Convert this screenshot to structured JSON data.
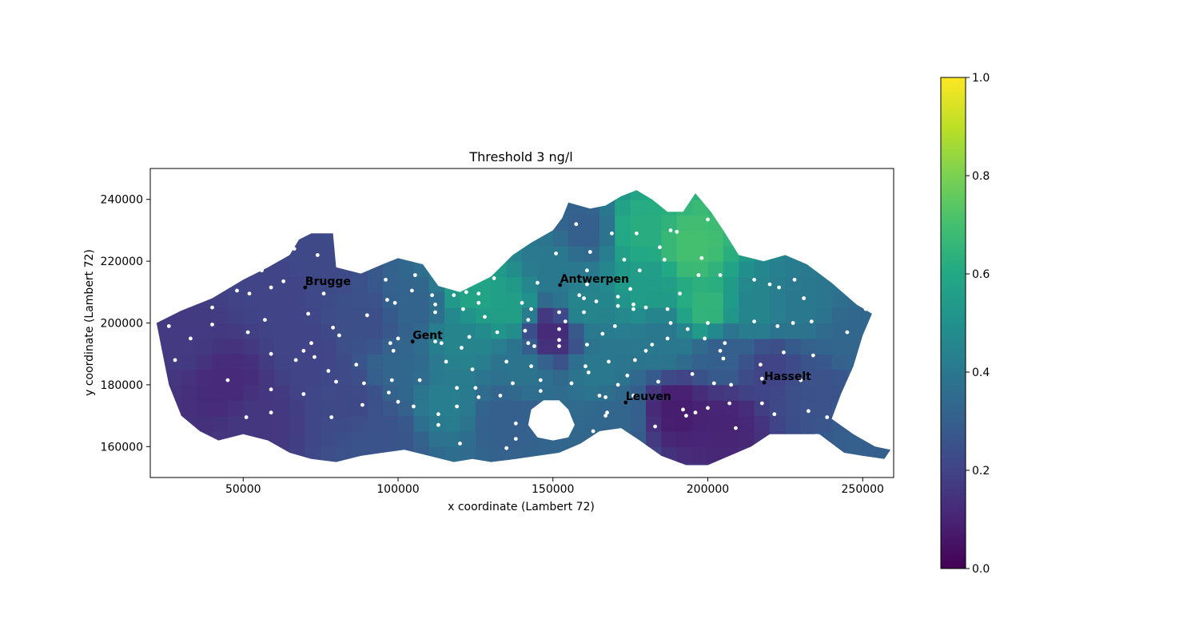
{
  "chart_data": {
    "type": "heatmap",
    "title": "Threshold 3 ng/l",
    "xlabel": "x coordinate (Lambert 72)",
    "ylabel": "y coordinate (Lambert 72)",
    "xlim": [
      20000,
      260000
    ],
    "ylim": [
      150000,
      250000
    ],
    "x_ticks": [
      50000,
      100000,
      150000,
      200000,
      250000
    ],
    "x_tick_labels": [
      "50000",
      "100000",
      "150000",
      "200000",
      "250000"
    ],
    "y_ticks": [
      160000,
      180000,
      200000,
      220000,
      240000
    ],
    "y_tick_labels": [
      "160000",
      "180000",
      "200000",
      "220000",
      "240000"
    ],
    "grid": false,
    "colormap": "viridis",
    "colorbar": {
      "min": 0.0,
      "max": 1.0,
      "ticks": [
        0.0,
        0.2,
        0.4,
        0.6,
        0.8,
        1.0
      ],
      "tick_labels": [
        "0.0",
        "0.2",
        "0.4",
        "0.6",
        "0.8",
        "1.0"
      ]
    },
    "cities": [
      {
        "name": "Brugge",
        "x": 70000,
        "y": 211500
      },
      {
        "name": "Gent",
        "x": 104700,
        "y": 194000
      },
      {
        "name": "Antwerpen",
        "x": 152300,
        "y": 212300
      },
      {
        "name": "Leuven",
        "x": 173500,
        "y": 174300
      },
      {
        "name": "Hasselt",
        "x": 218200,
        "y": 180700
      }
    ],
    "region_outline": [
      [
        22000,
        200000
      ],
      [
        30000,
        204000
      ],
      [
        40000,
        208000
      ],
      [
        50000,
        214000
      ],
      [
        58000,
        218000
      ],
      [
        65000,
        222000
      ],
      [
        68000,
        227000
      ],
      [
        72000,
        229000
      ],
      [
        79000,
        229000
      ],
      [
        80000,
        218000
      ],
      [
        88000,
        216000
      ],
      [
        95000,
        219000
      ],
      [
        100000,
        221000
      ],
      [
        108000,
        219000
      ],
      [
        113000,
        212000
      ],
      [
        120000,
        210000
      ],
      [
        130000,
        215000
      ],
      [
        137000,
        222000
      ],
      [
        143000,
        226000
      ],
      [
        150000,
        230000
      ],
      [
        153000,
        234000
      ],
      [
        155000,
        239000
      ],
      [
        162000,
        237000
      ],
      [
        167000,
        238000
      ],
      [
        172000,
        241000
      ],
      [
        177000,
        243000
      ],
      [
        182000,
        240000
      ],
      [
        187000,
        236000
      ],
      [
        192000,
        236000
      ],
      [
        196000,
        242000
      ],
      [
        201000,
        236000
      ],
      [
        205000,
        230000
      ],
      [
        210000,
        222000
      ],
      [
        218000,
        220000
      ],
      [
        225000,
        222000
      ],
      [
        232000,
        219000
      ],
      [
        240000,
        213000
      ],
      [
        248000,
        206000
      ],
      [
        253000,
        203000
      ],
      [
        250000,
        196000
      ],
      [
        247000,
        186000
      ],
      [
        243000,
        177000
      ],
      [
        240000,
        169000
      ],
      [
        247000,
        164000
      ],
      [
        254000,
        160000
      ],
      [
        259000,
        159000
      ],
      [
        257000,
        156000
      ],
      [
        250000,
        157000
      ],
      [
        244000,
        158000
      ],
      [
        236000,
        164000
      ],
      [
        228000,
        164000
      ],
      [
        220000,
        164000
      ],
      [
        214000,
        160000
      ],
      [
        207000,
        157000
      ],
      [
        200000,
        154000
      ],
      [
        193000,
        154000
      ],
      [
        185000,
        157000
      ],
      [
        178000,
        162000
      ],
      [
        172000,
        166000
      ],
      [
        165000,
        165000
      ],
      [
        159000,
        161000
      ],
      [
        152000,
        158000
      ],
      [
        145000,
        157000
      ],
      [
        138000,
        156000
      ],
      [
        130000,
        155000
      ],
      [
        124000,
        156000
      ],
      [
        118000,
        155000
      ],
      [
        110000,
        157000
      ],
      [
        102000,
        159000
      ],
      [
        95000,
        158000
      ],
      [
        88000,
        157000
      ],
      [
        80000,
        155000
      ],
      [
        72000,
        156000
      ],
      [
        65000,
        158000
      ],
      [
        58000,
        162000
      ],
      [
        50000,
        164000
      ],
      [
        42000,
        162000
      ],
      [
        36000,
        165000
      ],
      [
        30000,
        170000
      ],
      [
        26000,
        180000
      ],
      [
        24000,
        190000
      ],
      [
        22000,
        200000
      ]
    ],
    "region_hole": [
      [
        143000,
        172000
      ],
      [
        147000,
        175000
      ],
      [
        152000,
        175000
      ],
      [
        155000,
        172000
      ],
      [
        157000,
        167000
      ],
      [
        155000,
        163000
      ],
      [
        150000,
        162000
      ],
      [
        145000,
        163000
      ],
      [
        142000,
        167000
      ]
    ],
    "value_field_points": [
      {
        "x": 30000,
        "y": 195000,
        "value": 0.17
      },
      {
        "x": 45000,
        "y": 180000,
        "value": 0.12
      },
      {
        "x": 55000,
        "y": 170000,
        "value": 0.16
      },
      {
        "x": 60000,
        "y": 210000,
        "value": 0.2
      },
      {
        "x": 75000,
        "y": 220000,
        "value": 0.22
      },
      {
        "x": 70000,
        "y": 190000,
        "value": 0.2
      },
      {
        "x": 85000,
        "y": 175000,
        "value": 0.22
      },
      {
        "x": 90000,
        "y": 200000,
        "value": 0.24
      },
      {
        "x": 95000,
        "y": 165000,
        "value": 0.26
      },
      {
        "x": 100000,
        "y": 185000,
        "value": 0.33
      },
      {
        "x": 105000,
        "y": 205000,
        "value": 0.32
      },
      {
        "x": 115000,
        "y": 175000,
        "value": 0.42
      },
      {
        "x": 120000,
        "y": 195000,
        "value": 0.45
      },
      {
        "x": 125000,
        "y": 210000,
        "value": 0.58
      },
      {
        "x": 135000,
        "y": 205000,
        "value": 0.56
      },
      {
        "x": 135000,
        "y": 170000,
        "value": 0.3
      },
      {
        "x": 140000,
        "y": 185000,
        "value": 0.38
      },
      {
        "x": 150000,
        "y": 197000,
        "value": 0.12
      },
      {
        "x": 150000,
        "y": 220000,
        "value": 0.4
      },
      {
        "x": 160000,
        "y": 230000,
        "value": 0.3
      },
      {
        "x": 160000,
        "y": 205000,
        "value": 0.45
      },
      {
        "x": 165000,
        "y": 185000,
        "value": 0.4
      },
      {
        "x": 170000,
        "y": 170000,
        "value": 0.33
      },
      {
        "x": 178000,
        "y": 230000,
        "value": 0.62
      },
      {
        "x": 180000,
        "y": 212000,
        "value": 0.55
      },
      {
        "x": 185000,
        "y": 195000,
        "value": 0.4
      },
      {
        "x": 190000,
        "y": 172000,
        "value": 0.08
      },
      {
        "x": 195000,
        "y": 225000,
        "value": 0.7
      },
      {
        "x": 200000,
        "y": 205000,
        "value": 0.65
      },
      {
        "x": 205000,
        "y": 190000,
        "value": 0.3
      },
      {
        "x": 205000,
        "y": 168000,
        "value": 0.1
      },
      {
        "x": 215000,
        "y": 205000,
        "value": 0.45
      },
      {
        "x": 220000,
        "y": 185000,
        "value": 0.2
      },
      {
        "x": 230000,
        "y": 205000,
        "value": 0.4
      },
      {
        "x": 235000,
        "y": 180000,
        "value": 0.25
      },
      {
        "x": 245000,
        "y": 195000,
        "value": 0.33
      },
      {
        "x": 252000,
        "y": 160000,
        "value": 0.3
      }
    ],
    "sample_points": [
      [
        26000,
        199000
      ],
      [
        28000,
        188000
      ],
      [
        33000,
        195000
      ],
      [
        40000,
        205000
      ],
      [
        40000,
        199500
      ],
      [
        45000,
        181500
      ],
      [
        48000,
        210500
      ],
      [
        52000,
        209500
      ],
      [
        56000,
        217000
      ],
      [
        57000,
        201000
      ],
      [
        59000,
        211500
      ],
      [
        63000,
        213500
      ],
      [
        66500,
        224000
      ],
      [
        67000,
        188000
      ],
      [
        69500,
        191000
      ],
      [
        71000,
        203000
      ],
      [
        72000,
        193500
      ],
      [
        73000,
        189000
      ],
      [
        74000,
        222000
      ],
      [
        76000,
        209500
      ],
      [
        77500,
        184500
      ],
      [
        79000,
        198500
      ],
      [
        80000,
        181000
      ],
      [
        81000,
        196000
      ],
      [
        59000,
        190000
      ],
      [
        59000,
        178500
      ],
      [
        59000,
        171000
      ],
      [
        51000,
        169500
      ],
      [
        51500,
        197000
      ],
      [
        69500,
        177000
      ],
      [
        78500,
        169500
      ],
      [
        88500,
        173500
      ],
      [
        89000,
        180500
      ],
      [
        86500,
        186500
      ],
      [
        90000,
        202500
      ],
      [
        96000,
        214000
      ],
      [
        96500,
        207500
      ],
      [
        97500,
        193500
      ],
      [
        97000,
        177500
      ],
      [
        98000,
        181500
      ],
      [
        98500,
        191000
      ],
      [
        99000,
        206500
      ],
      [
        100000,
        195000
      ],
      [
        100000,
        174500
      ],
      [
        104500,
        210500
      ],
      [
        105500,
        215500
      ],
      [
        105000,
        173000
      ],
      [
        107000,
        181500
      ],
      [
        111000,
        209000
      ],
      [
        112000,
        203500
      ],
      [
        112000,
        206000
      ],
      [
        112000,
        194000
      ],
      [
        113000,
        170500
      ],
      [
        113000,
        167000
      ],
      [
        114000,
        193500
      ],
      [
        115500,
        187500
      ],
      [
        118000,
        209000
      ],
      [
        119000,
        179000
      ],
      [
        119000,
        173000
      ],
      [
        120000,
        161000
      ],
      [
        120500,
        192000
      ],
      [
        121000,
        204500
      ],
      [
        122000,
        210000
      ],
      [
        123000,
        195500
      ],
      [
        124000,
        185000
      ],
      [
        125000,
        179000
      ],
      [
        126000,
        176000
      ],
      [
        126000,
        206500
      ],
      [
        126000,
        209500
      ],
      [
        128000,
        202000
      ],
      [
        131000,
        214500
      ],
      [
        132000,
        197000
      ],
      [
        133000,
        176500
      ],
      [
        135000,
        187500
      ],
      [
        135000,
        159500
      ],
      [
        137000,
        180500
      ],
      [
        138000,
        167500
      ],
      [
        138000,
        162500
      ],
      [
        140000,
        206500
      ],
      [
        141000,
        197500
      ],
      [
        142000,
        193500
      ],
      [
        142000,
        201000
      ],
      [
        143000,
        204500
      ],
      [
        143000,
        186000
      ],
      [
        144000,
        192500
      ],
      [
        145000,
        213000
      ],
      [
        146000,
        178000
      ],
      [
        146000,
        181500
      ],
      [
        148000,
        170000
      ],
      [
        151000,
        222500
      ],
      [
        152000,
        203500
      ],
      [
        152000,
        198000
      ],
      [
        152000,
        194500
      ],
      [
        152000,
        192500
      ],
      [
        154000,
        200500
      ],
      [
        156000,
        180500
      ],
      [
        157500,
        232000
      ],
      [
        158500,
        209000
      ],
      [
        160000,
        203500
      ],
      [
        160000,
        208000
      ],
      [
        160500,
        186000
      ],
      [
        161000,
        193000
      ],
      [
        161000,
        217000
      ],
      [
        161000,
        212500
      ],
      [
        161500,
        184000
      ],
      [
        162000,
        223000
      ],
      [
        163000,
        165000
      ],
      [
        164000,
        207000
      ],
      [
        165000,
        176500
      ],
      [
        166000,
        196500
      ],
      [
        167000,
        170000
      ],
      [
        167000,
        176000
      ],
      [
        167500,
        171000
      ],
      [
        168000,
        187500
      ],
      [
        169000,
        229000
      ],
      [
        170000,
        199000
      ],
      [
        171000,
        205500
      ],
      [
        171000,
        208500
      ],
      [
        171000,
        180000
      ],
      [
        173000,
        220500
      ],
      [
        174000,
        183000
      ],
      [
        175000,
        211000
      ],
      [
        176000,
        206000
      ],
      [
        176000,
        204500
      ],
      [
        176000,
        176500
      ],
      [
        176500,
        188000
      ],
      [
        177000,
        229000
      ],
      [
        178000,
        217000
      ],
      [
        180000,
        191000
      ],
      [
        180000,
        205000
      ],
      [
        182000,
        193000
      ],
      [
        183000,
        166500
      ],
      [
        184000,
        181000
      ],
      [
        184500,
        224500
      ],
      [
        186000,
        220500
      ],
      [
        187000,
        204500
      ],
      [
        187000,
        195000
      ],
      [
        188000,
        200000
      ],
      [
        188000,
        230000
      ],
      [
        190000,
        229500
      ],
      [
        191000,
        209500
      ],
      [
        192000,
        172000
      ],
      [
        193000,
        170000
      ],
      [
        193500,
        198000
      ],
      [
        195000,
        183500
      ],
      [
        196000,
        171000
      ],
      [
        197000,
        215500
      ],
      [
        198000,
        221000
      ],
      [
        199000,
        195000
      ],
      [
        200000,
        233500
      ],
      [
        200000,
        200000
      ],
      [
        200000,
        172500
      ],
      [
        202000,
        180500
      ],
      [
        204000,
        215500
      ],
      [
        204000,
        191000
      ],
      [
        205000,
        188500
      ],
      [
        205500,
        193500
      ],
      [
        207000,
        174000
      ],
      [
        207500,
        180000
      ],
      [
        209000,
        166000
      ],
      [
        215000,
        214000
      ],
      [
        215000,
        200500
      ],
      [
        217000,
        186500
      ],
      [
        217500,
        182000
      ],
      [
        217500,
        174000
      ],
      [
        220000,
        212500
      ],
      [
        221500,
        170500
      ],
      [
        222500,
        199000
      ],
      [
        223000,
        211500
      ],
      [
        224500,
        190500
      ],
      [
        227500,
        200000
      ],
      [
        228000,
        214000
      ],
      [
        230000,
        181500
      ],
      [
        231000,
        208000
      ],
      [
        232500,
        171500
      ],
      [
        233500,
        200500
      ],
      [
        234000,
        189500
      ],
      [
        235000,
        163500
      ],
      [
        238500,
        169500
      ],
      [
        245000,
        197000
      ],
      [
        251000,
        204500
      ]
    ]
  }
}
